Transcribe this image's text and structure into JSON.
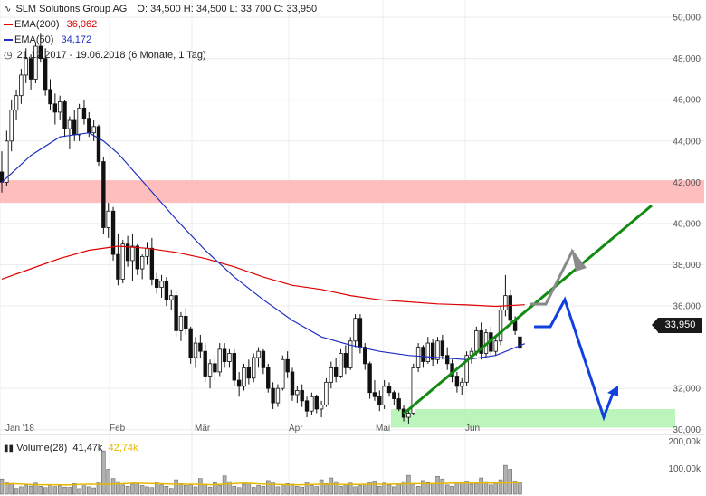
{
  "header": {
    "logo_icon": "chart-wave-icon",
    "title": "SLM Solutions Group AG",
    "ohlc": "O: 34,500  H: 34,500  L: 33,700  C: 33,950",
    "ema200_label": "EMA(200)",
    "ema200_value": "36,062",
    "ema200_color": "#dd0000",
    "ema50_label": "EMA(50)",
    "ema50_value": "34,172",
    "ema50_color": "#1f2fbf",
    "clock_icon": "clock-icon",
    "range": "21.12.2017 - 19.06.2018  (6 Monate, 1 Tag)"
  },
  "volume_header": {
    "label": "Volume(28)",
    "value1": "41,47k",
    "value2": "42,74k",
    "value2_color": "#e6b800"
  },
  "last_price": "33,950",
  "chart_data": {
    "type": "candlestick",
    "y_ticks": [
      "50,000",
      "48,000",
      "46,000",
      "44,000",
      "42,000",
      "40,000",
      "38,000",
      "36,000",
      "32,000",
      "30,000"
    ],
    "y_tick_values": [
      50,
      48,
      46,
      44,
      42,
      40,
      38,
      36,
      32,
      30
    ],
    "x_ticks": [
      "Jan '18",
      "Feb",
      "Mär",
      "Apr",
      "Mai",
      "Jun"
    ],
    "volume_ticks": [
      "200,00k",
      "100,00k"
    ],
    "ylim": [
      29.9,
      50.4
    ],
    "resistance_zone": [
      41.0,
      42.1
    ],
    "support_zone": [
      30.1,
      31.0
    ],
    "candles": [
      [
        42.5,
        43.5,
        41.5,
        42.0
      ],
      [
        42.0,
        44.5,
        41.8,
        44.0
      ],
      [
        44.0,
        46.0,
        43.5,
        45.5
      ],
      [
        45.5,
        46.5,
        45.0,
        46.2
      ],
      [
        46.2,
        47.5,
        45.8,
        47.2
      ],
      [
        47.2,
        48.5,
        46.8,
        48.0
      ],
      [
        48.0,
        48.2,
        46.5,
        47.0
      ],
      [
        47.0,
        48.8,
        46.8,
        48.6
      ],
      [
        48.6,
        49.2,
        47.8,
        48.0
      ],
      [
        48.0,
        48.5,
        46.2,
        46.5
      ],
      [
        46.5,
        47.0,
        45.5,
        45.8
      ],
      [
        45.8,
        46.3,
        44.8,
        45.4
      ],
      [
        45.4,
        46.2,
        45.0,
        45.9
      ],
      [
        45.9,
        46.0,
        44.2,
        44.6
      ],
      [
        44.6,
        45.2,
        43.6,
        45.0
      ],
      [
        45.0,
        45.5,
        44.0,
        44.3
      ],
      [
        44.3,
        45.8,
        44.0,
        45.6
      ],
      [
        45.6,
        46.0,
        44.8,
        45.1
      ],
      [
        45.1,
        45.4,
        44.2,
        44.4
      ],
      [
        44.4,
        45.0,
        44.0,
        44.7
      ],
      [
        44.7,
        44.8,
        42.8,
        43.0
      ],
      [
        43.0,
        43.2,
        39.5,
        39.8
      ],
      [
        39.8,
        41.0,
        39.3,
        40.6
      ],
      [
        40.6,
        40.8,
        38.2,
        38.5
      ],
      [
        38.5,
        39.5,
        37.0,
        37.3
      ],
      [
        37.3,
        39.2,
        37.1,
        39.0
      ],
      [
        39.0,
        39.4,
        37.9,
        38.2
      ],
      [
        38.2,
        39.5,
        37.2,
        38.9
      ],
      [
        38.9,
        39.0,
        37.5,
        37.8
      ],
      [
        37.8,
        38.5,
        37.3,
        38.4
      ],
      [
        38.4,
        39.1,
        38.0,
        38.8
      ],
      [
        38.8,
        39.3,
        37.0,
        37.3
      ],
      [
        37.3,
        37.6,
        36.6,
        36.9
      ],
      [
        36.9,
        37.5,
        36.4,
        37.2
      ],
      [
        37.2,
        37.4,
        36.0,
        36.3
      ],
      [
        36.3,
        36.8,
        35.8,
        36.5
      ],
      [
        36.5,
        36.7,
        34.5,
        34.8
      ],
      [
        34.8,
        35.7,
        34.3,
        35.5
      ],
      [
        35.5,
        35.9,
        34.6,
        34.9
      ],
      [
        34.9,
        35.0,
        33.2,
        33.5
      ],
      [
        33.5,
        34.5,
        33.0,
        34.2
      ],
      [
        34.2,
        34.6,
        33.5,
        33.8
      ],
      [
        33.8,
        34.2,
        32.3,
        32.6
      ],
      [
        32.6,
        33.4,
        32.0,
        33.2
      ],
      [
        33.2,
        33.6,
        32.4,
        32.8
      ],
      [
        32.8,
        34.2,
        32.6,
        33.9
      ],
      [
        33.9,
        34.2,
        33.0,
        33.3
      ],
      [
        33.3,
        33.9,
        33.0,
        33.7
      ],
      [
        33.7,
        33.9,
        32.1,
        32.4
      ],
      [
        32.4,
        32.8,
        31.6,
        32.1
      ],
      [
        32.1,
        33.2,
        31.9,
        33.0
      ],
      [
        33.0,
        33.4,
        32.2,
        32.5
      ],
      [
        32.5,
        33.7,
        32.3,
        33.5
      ],
      [
        33.5,
        34.0,
        33.0,
        33.8
      ],
      [
        33.8,
        33.9,
        32.7,
        33.0
      ],
      [
        33.0,
        33.2,
        31.8,
        32.0
      ],
      [
        32.0,
        32.3,
        31.0,
        31.3
      ],
      [
        31.3,
        32.2,
        31.1,
        32.0
      ],
      [
        32.0,
        33.6,
        31.9,
        33.4
      ],
      [
        33.4,
        33.8,
        32.5,
        32.8
      ],
      [
        32.8,
        33.0,
        31.4,
        31.7
      ],
      [
        31.7,
        32.1,
        31.3,
        31.9
      ],
      [
        31.9,
        32.2,
        31.1,
        31.4
      ],
      [
        31.4,
        31.6,
        30.6,
        30.9
      ],
      [
        30.9,
        31.8,
        30.7,
        31.6
      ],
      [
        31.6,
        31.7,
        30.8,
        31.0
      ],
      [
        31.0,
        31.4,
        30.6,
        31.2
      ],
      [
        31.2,
        32.5,
        31.1,
        32.3
      ],
      [
        32.3,
        33.3,
        32.0,
        33.0
      ],
      [
        33.0,
        33.5,
        32.3,
        32.6
      ],
      [
        32.6,
        33.9,
        32.5,
        33.7
      ],
      [
        33.7,
        34.1,
        32.7,
        33.0
      ],
      [
        33.0,
        34.5,
        32.9,
        34.3
      ],
      [
        34.3,
        35.6,
        34.0,
        35.4
      ],
      [
        35.4,
        35.6,
        33.7,
        34.0
      ],
      [
        34.0,
        34.2,
        32.9,
        33.2
      ],
      [
        33.2,
        33.3,
        31.5,
        31.8
      ],
      [
        31.8,
        32.4,
        31.4,
        31.6
      ],
      [
        31.6,
        31.9,
        30.9,
        31.2
      ],
      [
        31.2,
        32.4,
        31.0,
        32.1
      ],
      [
        32.1,
        32.3,
        31.6,
        31.8
      ],
      [
        31.8,
        31.9,
        31.2,
        31.5
      ],
      [
        31.5,
        31.8,
        30.9,
        31.0
      ],
      [
        31.0,
        31.2,
        30.4,
        30.6
      ],
      [
        30.6,
        31.0,
        30.3,
        30.8
      ],
      [
        30.8,
        33.2,
        30.7,
        33.0
      ],
      [
        33.0,
        34.2,
        32.8,
        34.0
      ],
      [
        34.0,
        34.1,
        33.0,
        33.3
      ],
      [
        33.3,
        34.5,
        33.2,
        34.2
      ],
      [
        34.2,
        34.4,
        33.1,
        33.4
      ],
      [
        33.4,
        34.5,
        33.2,
        34.3
      ],
      [
        34.3,
        34.6,
        33.4,
        33.6
      ],
      [
        33.6,
        34.0,
        32.9,
        33.2
      ],
      [
        33.2,
        33.4,
        32.3,
        32.6
      ],
      [
        32.6,
        32.8,
        31.8,
        32.1
      ],
      [
        32.1,
        32.5,
        31.7,
        32.3
      ],
      [
        32.3,
        33.8,
        32.1,
        33.6
      ],
      [
        33.6,
        34.0,
        33.2,
        33.8
      ],
      [
        33.8,
        35.0,
        33.6,
        34.8
      ],
      [
        34.8,
        35.2,
        33.4,
        33.7
      ],
      [
        33.7,
        34.9,
        33.5,
        34.7
      ],
      [
        34.7,
        35.0,
        33.6,
        33.8
      ],
      [
        33.8,
        34.5,
        33.6,
        34.3
      ],
      [
        34.3,
        36.0,
        34.1,
        35.8
      ],
      [
        35.8,
        37.5,
        35.5,
        36.5
      ],
      [
        36.5,
        36.8,
        35.0,
        35.3
      ],
      [
        35.3,
        35.5,
        34.6,
        34.8
      ],
      [
        34.5,
        34.5,
        33.7,
        33.95
      ]
    ],
    "ema50": [
      [
        0,
        42.0
      ],
      [
        6,
        43.3
      ],
      [
        12,
        44.2
      ],
      [
        18,
        44.4
      ],
      [
        21,
        44.0
      ],
      [
        24,
        43.4
      ],
      [
        30,
        41.8
      ],
      [
        36,
        40.2
      ],
      [
        42,
        38.7
      ],
      [
        48,
        37.4
      ],
      [
        54,
        36.3
      ],
      [
        60,
        35.3
      ],
      [
        66,
        34.5
      ],
      [
        72,
        34.1
      ],
      [
        78,
        33.8
      ],
      [
        84,
        33.6
      ],
      [
        90,
        33.5
      ],
      [
        96,
        33.4
      ],
      [
        102,
        33.6
      ],
      [
        108,
        34.17
      ]
    ],
    "ema200": [
      [
        0,
        37.3
      ],
      [
        6,
        37.8
      ],
      [
        12,
        38.3
      ],
      [
        18,
        38.7
      ],
      [
        24,
        38.9
      ],
      [
        30,
        38.8
      ],
      [
        36,
        38.6
      ],
      [
        42,
        38.3
      ],
      [
        48,
        37.9
      ],
      [
        54,
        37.4
      ],
      [
        60,
        37.0
      ],
      [
        66,
        36.8
      ],
      [
        72,
        36.5
      ],
      [
        78,
        36.3
      ],
      [
        84,
        36.2
      ],
      [
        90,
        36.1
      ],
      [
        96,
        36.05
      ],
      [
        102,
        35.98
      ],
      [
        108,
        36.06
      ]
    ],
    "volume": [
      58,
      45,
      38,
      22,
      28,
      35,
      31,
      42,
      30,
      25,
      37,
      29,
      33,
      27,
      26,
      40,
      21,
      32,
      28,
      24,
      45,
      165,
      95,
      60,
      48,
      35,
      30,
      38,
      42,
      33,
      28,
      25,
      47,
      35,
      30,
      22,
      55,
      40,
      33,
      36,
      28,
      60,
      38,
      27,
      44,
      33,
      70,
      48,
      30,
      25,
      38,
      42,
      26,
      33,
      30,
      52,
      46,
      28,
      35,
      40,
      38,
      30,
      27,
      45,
      33,
      29,
      55,
      40,
      62,
      48,
      30,
      35,
      42,
      28,
      33,
      38,
      45,
      50,
      30,
      42,
      35,
      28,
      40,
      48,
      72,
      38,
      30,
      52,
      44,
      40,
      68,
      58,
      35,
      30,
      42,
      45,
      50,
      38,
      40,
      62,
      48,
      35,
      40,
      55,
      110,
      95,
      50,
      45
    ],
    "volume_avg": [
      38,
      40,
      38,
      36,
      36,
      36,
      35,
      37,
      38,
      38,
      39,
      40,
      42,
      41,
      40,
      39,
      38,
      38,
      37,
      36,
      38,
      40,
      42,
      40,
      38,
      37,
      36,
      36,
      37,
      38,
      38,
      37,
      37,
      38,
      38,
      38,
      39,
      40,
      40,
      40,
      41,
      42,
      42,
      42,
      42,
      42,
      43,
      43
    ]
  }
}
